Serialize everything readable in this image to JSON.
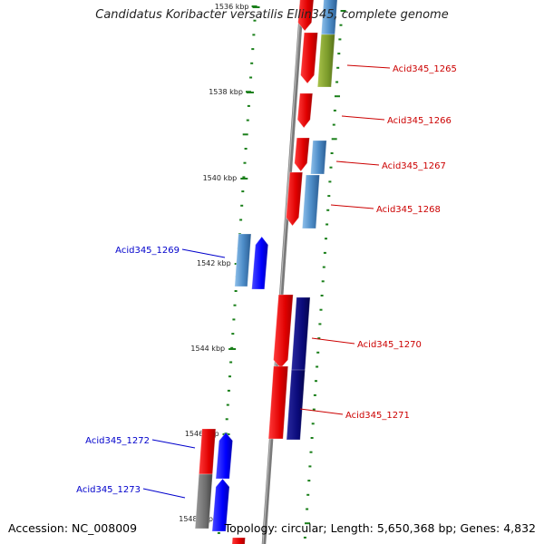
{
  "title": "Candidatus Koribacter versatilis Ellin345, complete genome",
  "footer": {
    "accession": "Accession: NC_008009",
    "summary": "Topology: circular; Length: 5,650,368 bp; Genes: 4,832"
  },
  "colors": {
    "forward_label": "#cc0000",
    "reverse_label": "#0000cc",
    "tick": "#1a7f1a",
    "backbone": "#808080",
    "red": "#ff0000",
    "steel_blue": "#4f8ec9",
    "olive": "#7a9a2a",
    "blue": "#0000ff",
    "navy": "#0a0a7a",
    "gray": "#6e6e6e"
  },
  "ruler": [
    {
      "label": "1536 kbp"
    },
    {
      "label": "1538 kbp"
    },
    {
      "label": "1540 kbp"
    },
    {
      "label": "1542 kbp"
    },
    {
      "label": "1544 kbp"
    },
    {
      "label": "1546 kbp"
    },
    {
      "label": "1548 kbp"
    }
  ],
  "genes": [
    {
      "name": "Acid345_1265",
      "strand": "forward"
    },
    {
      "name": "Acid345_1266",
      "strand": "forward"
    },
    {
      "name": "Acid345_1267",
      "strand": "forward"
    },
    {
      "name": "Acid345_1268",
      "strand": "forward"
    },
    {
      "name": "Acid345_1269",
      "strand": "reverse"
    },
    {
      "name": "Acid345_1270",
      "strand": "forward"
    },
    {
      "name": "Acid345_1271",
      "strand": "forward"
    },
    {
      "name": "Acid345_1272",
      "strand": "reverse"
    },
    {
      "name": "Acid345_1273",
      "strand": "reverse"
    }
  ]
}
